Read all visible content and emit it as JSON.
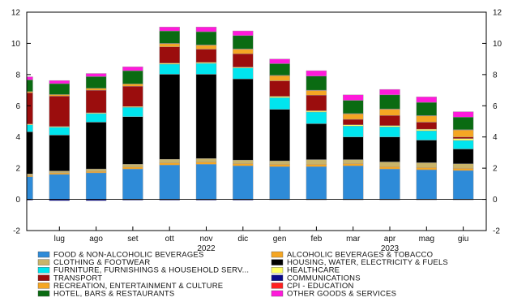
{
  "chart_data": {
    "type": "bar",
    "stacked": true,
    "title": "",
    "xlabel": "",
    "ylabel": "",
    "ylim": [
      -2,
      12
    ],
    "yticks": [
      -2,
      0,
      2,
      4,
      6,
      8,
      10,
      12
    ],
    "ytick_labels": [
      "-2",
      "0",
      "2",
      "4",
      "6",
      "8",
      "10",
      "12"
    ],
    "secondary_y_axis": true,
    "grid": false,
    "legend_position": "bottom",
    "first_bar_partially_visible": true,
    "categories": [
      "giu",
      "lug",
      "ago",
      "set",
      "ott",
      "nov",
      "dic",
      "gen",
      "feb",
      "mar",
      "apr",
      "mag",
      "giu"
    ],
    "category_labels": [
      "",
      "lug",
      "ago",
      "set",
      "ott",
      "nov",
      "dic",
      "gen",
      "feb",
      "mar",
      "apr",
      "mag",
      "giu"
    ],
    "year_labels": [
      {
        "label": "2022",
        "category_index": 5
      },
      {
        "label": "2023",
        "category_index": 10
      }
    ],
    "series": [
      {
        "name": "FOOD & NON-ALCOHOLIC BEVERAGES",
        "color": "#2e8bd8",
        "values": [
          1.45,
          1.6,
          1.7,
          1.95,
          2.2,
          2.25,
          2.15,
          2.1,
          2.1,
          2.15,
          1.95,
          1.9,
          1.85
        ]
      },
      {
        "name": "ALCOHOLIC BEVERAGES & TOBACCO",
        "color": "#f5a623",
        "values": [
          0.08,
          0.1,
          0.1,
          0.12,
          0.15,
          0.15,
          0.15,
          0.15,
          0.15,
          0.15,
          0.15,
          0.15,
          0.15
        ]
      },
      {
        "name": "CLOTHING & FOOTWEAR",
        "color": "#c9b469",
        "values": [
          0.1,
          0.12,
          0.15,
          0.18,
          0.22,
          0.22,
          0.22,
          0.22,
          0.3,
          0.25,
          0.3,
          0.3,
          0.28
        ]
      },
      {
        "name": "HOUSING, WATER, ELECTRICITY & FUELS",
        "color": "#000000",
        "values": [
          2.7,
          2.3,
          3.0,
          3.05,
          5.45,
          5.4,
          5.2,
          3.3,
          2.3,
          1.45,
          1.6,
          1.45,
          0.95
        ]
      },
      {
        "name": "FURNITURE, FURNISHINGS & HOUSEHOLD SERV...",
        "color": "#00e5ee",
        "values": [
          0.45,
          0.5,
          0.55,
          0.6,
          0.65,
          0.7,
          0.7,
          0.75,
          0.75,
          0.7,
          0.65,
          0.6,
          0.55
        ]
      },
      {
        "name": "HEALTHCARE",
        "color": "#ffff66",
        "values": [
          0.05,
          0.05,
          0.05,
          0.05,
          0.06,
          0.06,
          0.06,
          0.08,
          0.08,
          0.08,
          0.08,
          0.1,
          0.12
        ]
      },
      {
        "name": "TRANSPORT",
        "color": "#9b0d0d",
        "values": [
          2.0,
          1.95,
          1.45,
          1.3,
          1.05,
          0.85,
          0.85,
          1.0,
          1.0,
          0.35,
          0.65,
          0.45,
          0.1
        ]
      },
      {
        "name": "COMMUNICATIONS",
        "color": "#08088a",
        "values": [
          -0.05,
          -0.08,
          -0.08,
          -0.05,
          -0.05,
          -0.05,
          -0.05,
          -0.03,
          -0.03,
          -0.03,
          -0.03,
          -0.03,
          -0.03
        ]
      },
      {
        "name": "RECREATION, ENTERTAINMENT & CULTURE",
        "color": "#f5a623",
        "values": [
          0.08,
          0.1,
          0.12,
          0.15,
          0.2,
          0.25,
          0.3,
          0.33,
          0.3,
          0.35,
          0.4,
          0.4,
          0.45
        ]
      },
      {
        "name": "CPI - EDUCATION",
        "color": "#ff2020",
        "values": [
          0.0,
          0.0,
          0.0,
          0.0,
          0.02,
          0.02,
          0.02,
          0.02,
          0.02,
          0.02,
          0.02,
          0.02,
          0.02
        ]
      },
      {
        "name": "HOTEL, BARS & RESTAURANTS",
        "color": "#0a6b12",
        "values": [
          0.75,
          0.7,
          0.75,
          0.85,
          0.8,
          0.85,
          0.85,
          0.75,
          0.9,
          0.85,
          0.9,
          0.85,
          0.8
        ]
      },
      {
        "name": "OTHER GOODS & SERVICES",
        "color": "#ff1adb",
        "values": [
          0.2,
          0.2,
          0.2,
          0.25,
          0.25,
          0.3,
          0.3,
          0.3,
          0.35,
          0.35,
          0.35,
          0.35,
          0.35
        ]
      }
    ],
    "legend_order": [
      "FOOD & NON-ALCOHOLIC BEVERAGES",
      "ALCOHOLIC BEVERAGES & TOBACCO",
      "CLOTHING & FOOTWEAR",
      "HOUSING, WATER, ELECTRICITY & FUELS",
      "FURNITURE, FURNISHINGS & HOUSEHOLD SERV...",
      "HEALTHCARE",
      "TRANSPORT",
      "COMMUNICATIONS",
      "RECREATION, ENTERTAINMENT & CULTURE",
      "CPI - EDUCATION",
      "HOTEL, BARS & RESTAURANTS",
      "OTHER GOODS & SERVICES"
    ]
  }
}
